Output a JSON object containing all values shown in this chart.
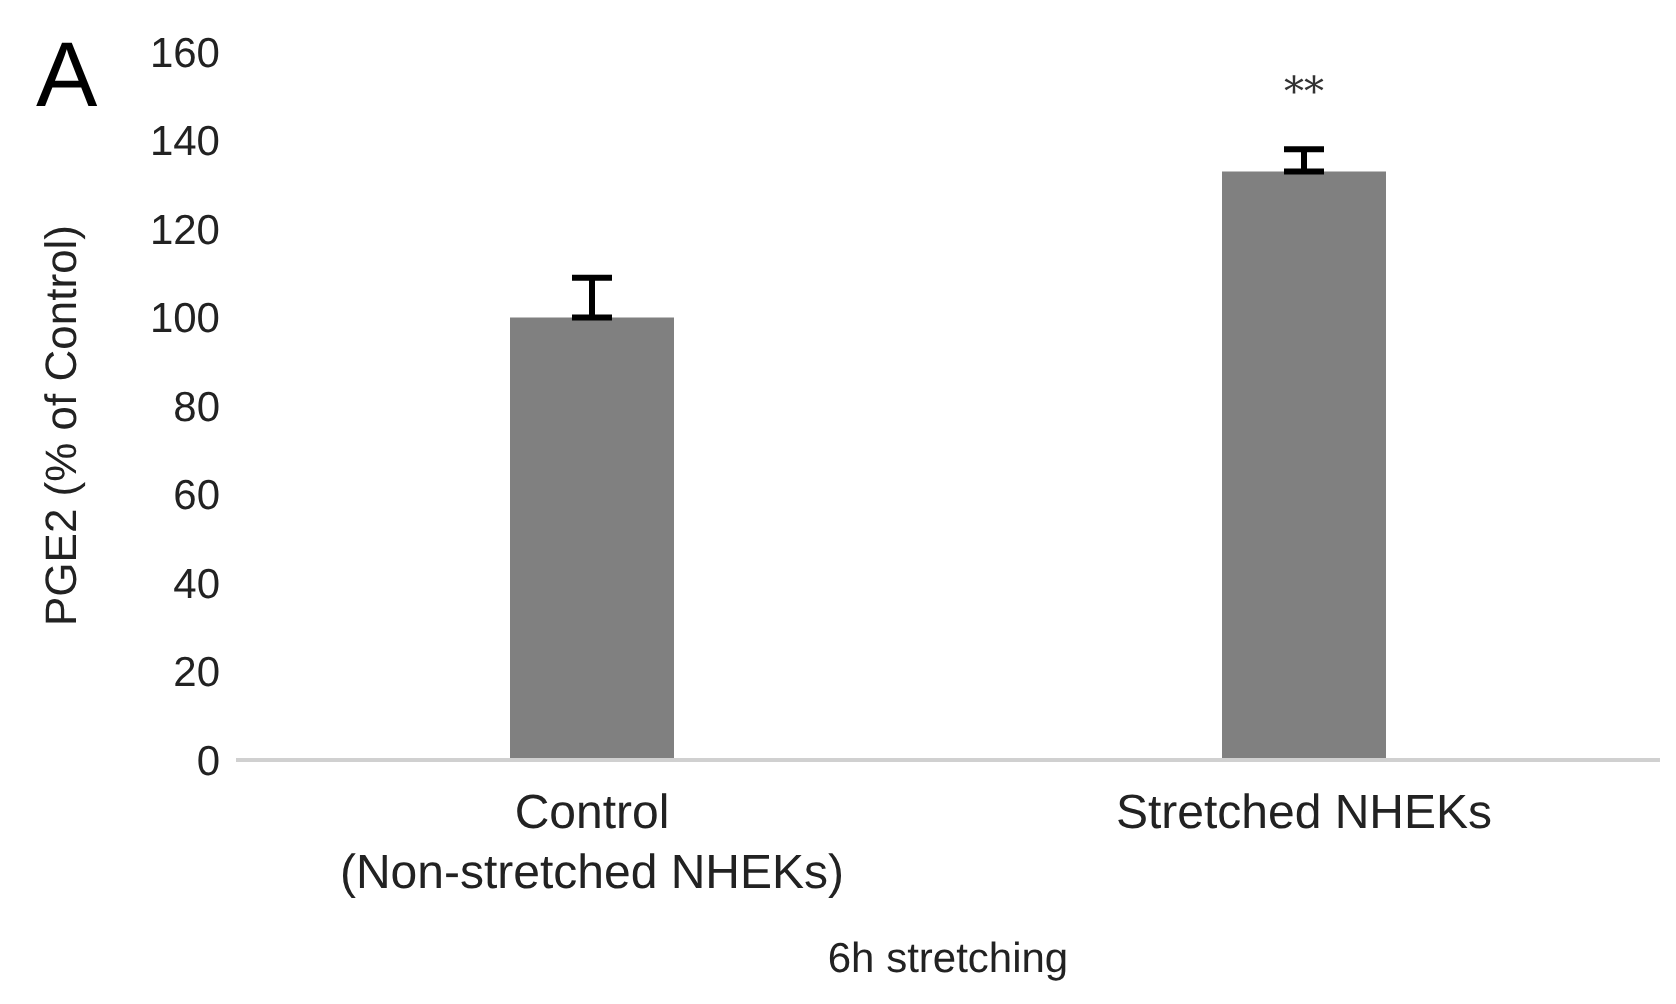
{
  "chart_data": {
    "type": "bar",
    "categories": [
      "Control\n(Non-stretched NHEKs)",
      "Stretched NHEKs"
    ],
    "values": [
      100,
      133
    ],
    "errors": [
      [
        100,
        109
      ],
      [
        133,
        138
      ]
    ],
    "color": "#808080",
    "ylabel": "PGE2 (% of Control)",
    "xlabel": "6h stretching",
    "ylim": [
      0,
      160
    ],
    "yticks": [
      0,
      20,
      40,
      60,
      80,
      100,
      120,
      140,
      160
    ],
    "grid": false,
    "annotations": [
      "A",
      {
        "text": "**",
        "x": "Stretched NHEKs",
        "y": 138
      }
    ]
  }
}
